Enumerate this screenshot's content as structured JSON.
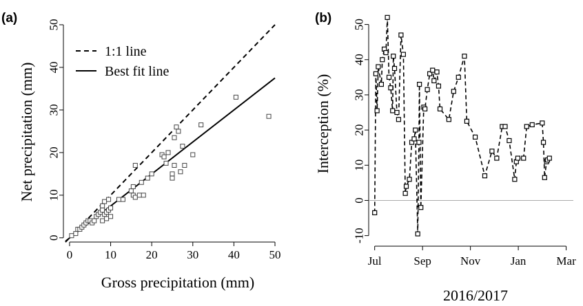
{
  "chart_data": [
    {
      "type": "scatter",
      "panel_label": "(a)",
      "xlabel": "Gross precipitation (mm)",
      "ylabel": "Net precipitation (mm)",
      "xlim": [
        -1.5,
        50.5
      ],
      "ylim": [
        -1,
        50
      ],
      "xticks": [
        0,
        10,
        20,
        30,
        40,
        50
      ],
      "yticks": [
        0,
        10,
        20,
        30,
        40,
        50
      ],
      "legend": {
        "placement": "top-left",
        "entries": [
          {
            "label": "1:1 line",
            "style": "dashed"
          },
          {
            "label": "Best fit line",
            "style": "solid"
          }
        ]
      },
      "lines": [
        {
          "name": "1:1 line",
          "style": "dashed",
          "x": [
            -1,
            50
          ],
          "y": [
            -1,
            50
          ]
        },
        {
          "name": "Best fit line",
          "style": "solid",
          "x": [
            -1,
            50
          ],
          "y": [
            -0.8,
            37.5
          ]
        }
      ],
      "points": [
        [
          0.5,
          0.5
        ],
        [
          1.5,
          1.0
        ],
        [
          2.0,
          2.0
        ],
        [
          2.5,
          2.0
        ],
        [
          3.0,
          2.5
        ],
        [
          3.5,
          3.0
        ],
        [
          4.0,
          3.5
        ],
        [
          4.5,
          4.0
        ],
        [
          5.0,
          4.0
        ],
        [
          5.5,
          3.5
        ],
        [
          6.0,
          4.0
        ],
        [
          6.5,
          5.0
        ],
        [
          7.0,
          5.5
        ],
        [
          7.5,
          6.0
        ],
        [
          8.0,
          4.0
        ],
        [
          8.0,
          6.5
        ],
        [
          8.5,
          5.5
        ],
        [
          9.0,
          6.0
        ],
        [
          9.0,
          4.5
        ],
        [
          9.5,
          6.5
        ],
        [
          10.0,
          7.0
        ],
        [
          10.0,
          5.0
        ],
        [
          8.5,
          8.5
        ],
        [
          9.5,
          9.0
        ],
        [
          8.0,
          7.5
        ],
        [
          12.0,
          9.0
        ],
        [
          13.0,
          9.0
        ],
        [
          15.0,
          11.0
        ],
        [
          15.5,
          12.0
        ],
        [
          15.5,
          10.0
        ],
        [
          16.0,
          9.5
        ],
        [
          16.0,
          17.0
        ],
        [
          17.0,
          10.0
        ],
        [
          17.5,
          13.0
        ],
        [
          18.0,
          10.0
        ],
        [
          19.0,
          14.0
        ],
        [
          20.0,
          15.0
        ],
        [
          22.5,
          19.5
        ],
        [
          23.0,
          19.0
        ],
        [
          24.0,
          20.0
        ],
        [
          23.5,
          17.5
        ],
        [
          25.0,
          15.0
        ],
        [
          25.0,
          14.0
        ],
        [
          25.5,
          17.0
        ],
        [
          25.5,
          23.5
        ],
        [
          26.0,
          26.0
        ],
        [
          26.5,
          25.0
        ],
        [
          27.0,
          15.5
        ],
        [
          27.5,
          21.5
        ],
        [
          28.0,
          17.0
        ],
        [
          30.0,
          19.5
        ],
        [
          32.0,
          26.5
        ],
        [
          40.5,
          33.0
        ],
        [
          48.5,
          28.5
        ]
      ]
    },
    {
      "type": "line",
      "panel_label": "(b)",
      "ylabel": "Interception (%)",
      "xlabel": "2016/2017",
      "x_tick_labels": [
        "Jul",
        "Sep",
        "Nov",
        "Jan",
        "Mar"
      ],
      "x_tick_positions_month_index": [
        0,
        2,
        4,
        6,
        8
      ],
      "xlim": [
        -0.25,
        8.3
      ],
      "ylim": [
        -13,
        55
      ],
      "yticks": [
        -10,
        0,
        10,
        20,
        30,
        40,
        50
      ],
      "reference_line_y": 0,
      "series": [
        {
          "style": "dashed",
          "marker": "square",
          "x": [
            0.0,
            0.05,
            0.1,
            0.15,
            0.28,
            0.32,
            0.4,
            0.47,
            0.53,
            0.6,
            0.67,
            0.75,
            0.78,
            0.83,
            0.93,
            1.0,
            1.1,
            1.2,
            1.28,
            1.32,
            1.45,
            1.55,
            1.65,
            1.7,
            1.8,
            1.85,
            1.87,
            1.93,
            2.05,
            2.1,
            2.2,
            2.3,
            2.42,
            2.48,
            2.6,
            2.67,
            2.73,
            3.1,
            3.3,
            3.5,
            3.75,
            3.85,
            4.2,
            4.6,
            4.9,
            5.1,
            5.33,
            5.45,
            5.62,
            5.85,
            5.92,
            5.98,
            6.22,
            6.35,
            6.58,
            7.0,
            7.05,
            7.1,
            7.18,
            7.22,
            7.3
          ],
          "y": [
            -3.5,
            36,
            25.5,
            38,
            33,
            40,
            43,
            42,
            52,
            35,
            32,
            25.5,
            41,
            37.5,
            25,
            23,
            47,
            41.5,
            2,
            4,
            6,
            16.5,
            17.5,
            20,
            -9.5,
            16.5,
            33,
            -2,
            26.5,
            26,
            31.5,
            36,
            37,
            34,
            36.5,
            32.5,
            26,
            23,
            31,
            35,
            41,
            22.5,
            18,
            7,
            14,
            12,
            21,
            21,
            17,
            6,
            11,
            12,
            12,
            21,
            21.5,
            22,
            16.5,
            6.5,
            11,
            11.5,
            12
          ]
        }
      ]
    }
  ]
}
